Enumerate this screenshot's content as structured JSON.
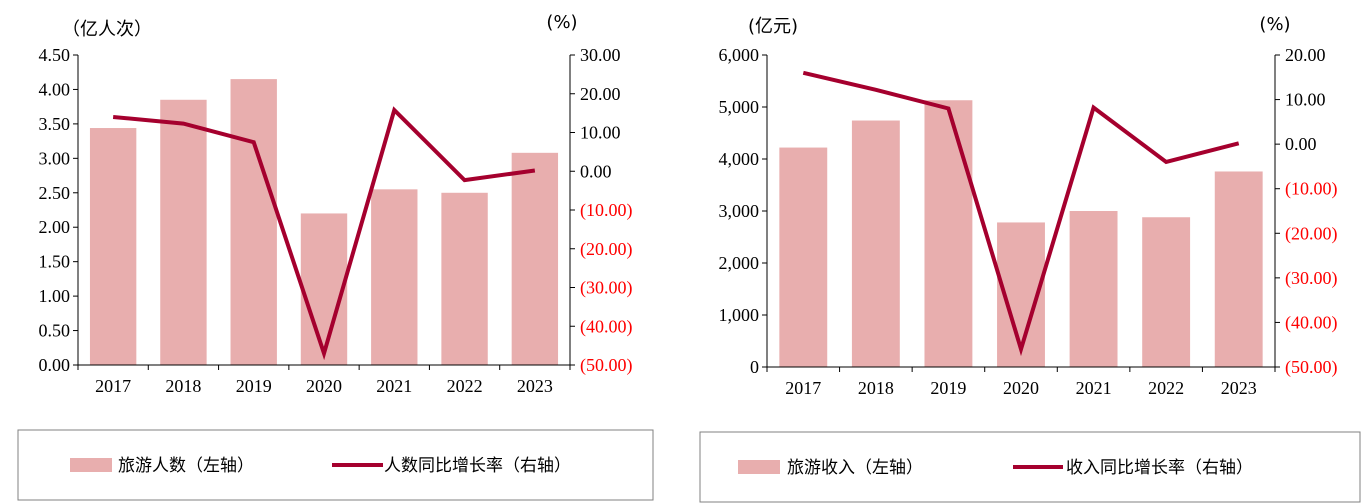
{
  "colors": {
    "bar": "#e8aeae",
    "line": "#a5002e",
    "negative": "#ff0000",
    "axis": "#000000"
  },
  "chart_data": [
    {
      "type": "bar+line",
      "categories": [
        "2017",
        "2018",
        "2019",
        "2020",
        "2021",
        "2022",
        "2023"
      ],
      "left_unit": "（亿人次）",
      "right_unit": "(%)",
      "left_ticks": [
        "0.00",
        "0.50",
        "1.00",
        "1.50",
        "2.00",
        "2.50",
        "3.00",
        "3.50",
        "4.00",
        "4.50"
      ],
      "right_ticks": [
        "(50.00)",
        "(40.00)",
        "(30.00)",
        "(20.00)",
        "(10.00)",
        "0.00",
        "10.00",
        "20.00",
        "30.00"
      ],
      "left_lim": [
        0,
        4.5
      ],
      "right_lim": [
        -50,
        30
      ],
      "bar_series": {
        "name": "旅游人数（左轴）",
        "values": [
          3.44,
          3.85,
          4.15,
          2.2,
          2.55,
          2.5,
          3.08
        ]
      },
      "line_series": {
        "name": "人数同比增长率（右轴）",
        "values": [
          14.0,
          12.3,
          7.5,
          -47.0,
          15.8,
          -2.3,
          0.2
        ]
      },
      "legend": "bottom"
    },
    {
      "type": "bar+line",
      "categories": [
        "2017",
        "2018",
        "2019",
        "2020",
        "2021",
        "2022",
        "2023"
      ],
      "left_unit": "(亿元)",
      "right_unit": "(%)",
      "left_ticks": [
        "0",
        "1,000",
        "2,000",
        "3,000",
        "4,000",
        "5,000",
        "6,000"
      ],
      "right_ticks": [
        "(50.00)",
        "(40.00)",
        "(30.00)",
        "(20.00)",
        "(10.00)",
        "0.00",
        "10.00",
        "20.00"
      ],
      "left_lim": [
        0,
        6000
      ],
      "right_lim": [
        -50,
        20
      ],
      "bar_series": {
        "name": "旅游收入（左轴）",
        "values": [
          4220,
          4740,
          5130,
          2780,
          3000,
          2880,
          3760
        ]
      },
      "line_series": {
        "name": "收入同比增长率（右轴）",
        "values": [
          16.0,
          12.2,
          8.0,
          -46.0,
          8.2,
          -4.0,
          0.2
        ]
      },
      "legend": "bottom"
    }
  ]
}
